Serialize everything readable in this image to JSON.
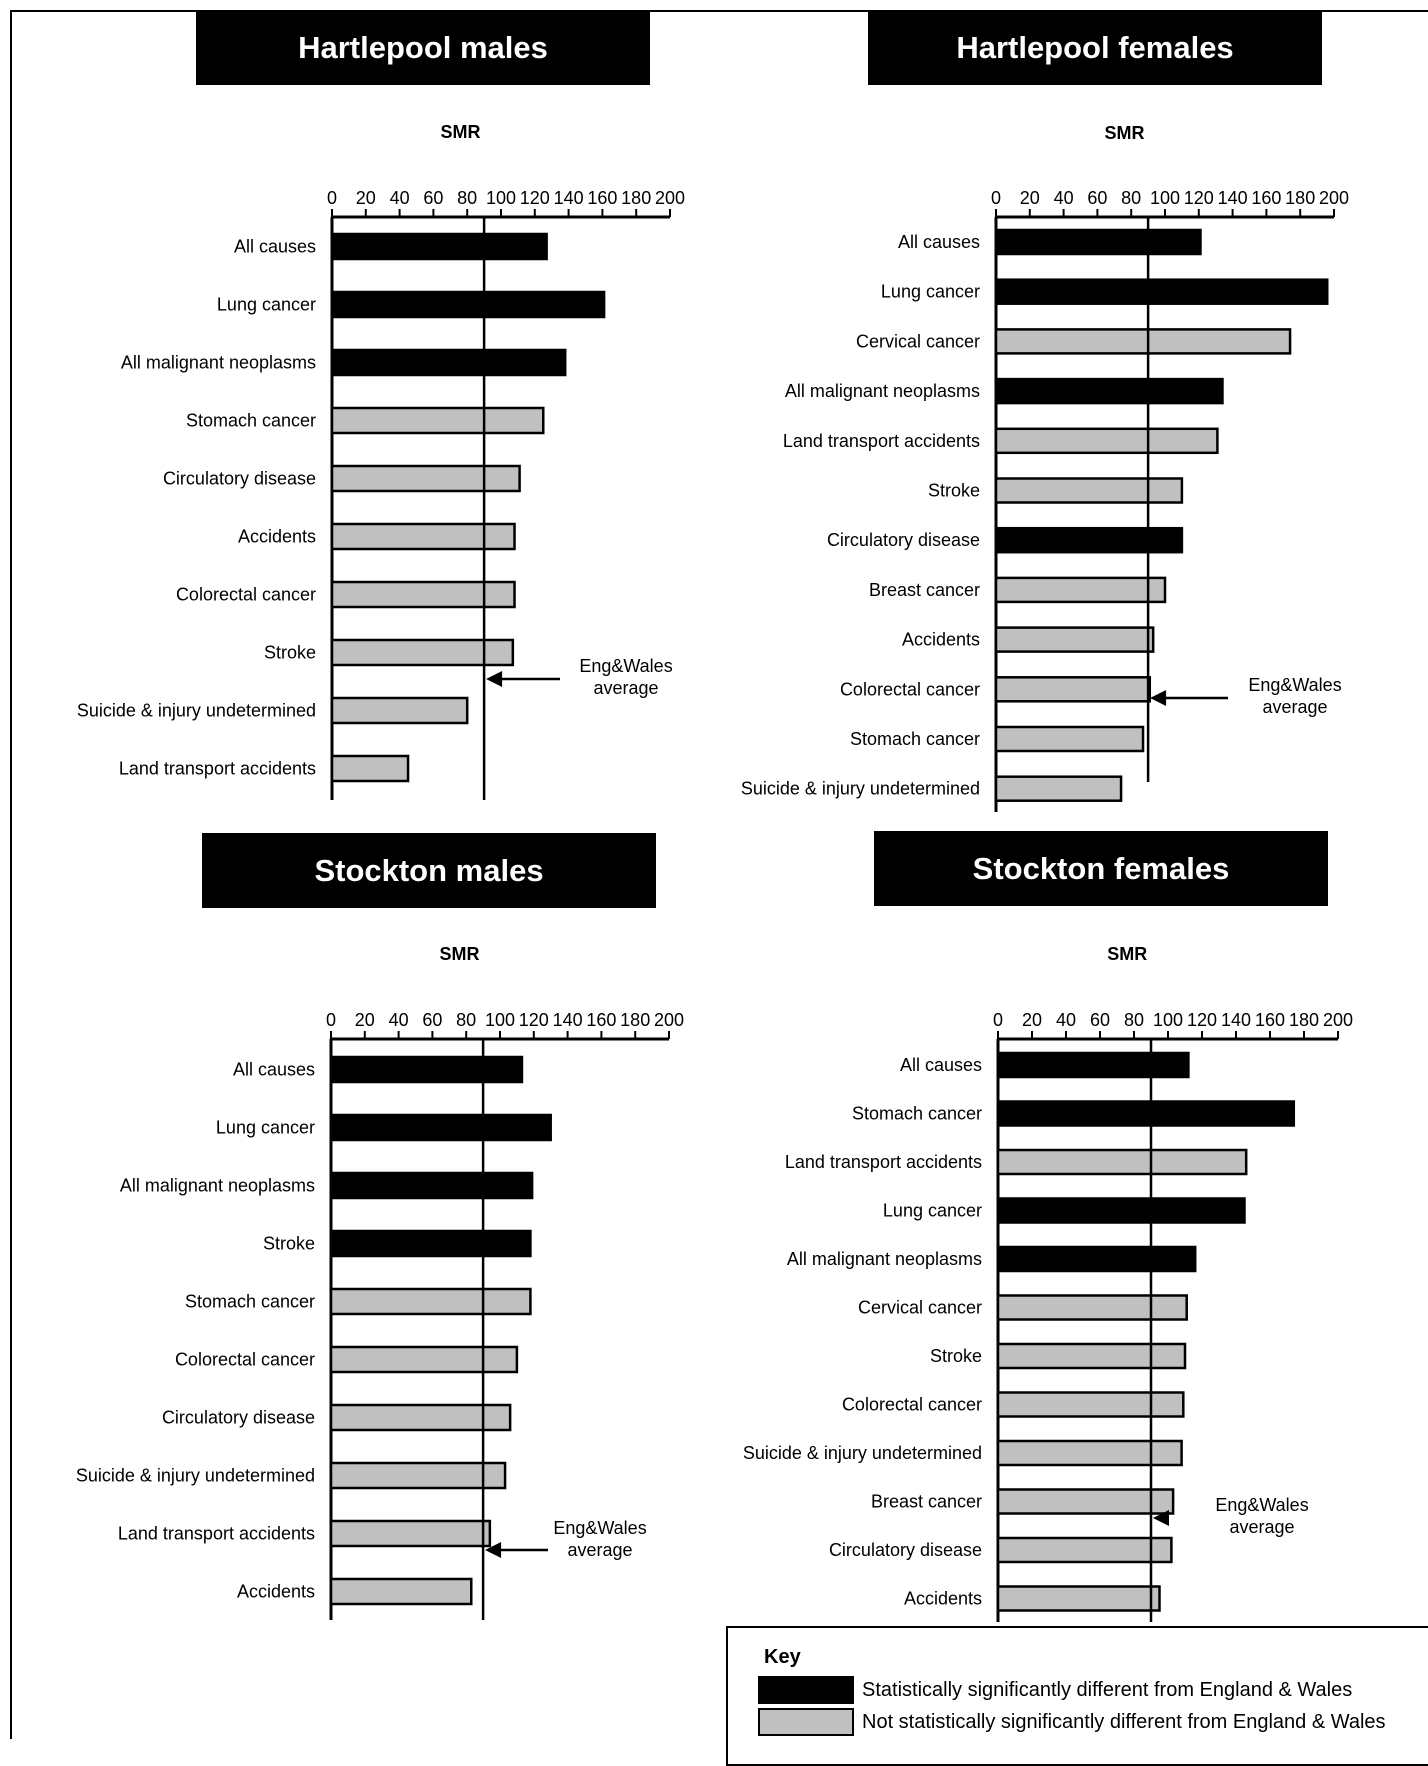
{
  "colors": {
    "significant": "#000000",
    "not_significant": "#c0c0c0"
  },
  "key": {
    "title": "Key",
    "significant_label": "Statistically significantly different from England & Wales",
    "not_significant_label": "Not statistically significantly different from England & Wales"
  },
  "chart_data": [
    {
      "type": "bar",
      "orientation": "horizontal",
      "title": "Hartlepool males",
      "xlabel": "SMR",
      "xlim": [
        0,
        200
      ],
      "xticks": [
        "0",
        "20",
        "40",
        "60",
        "80",
        "100",
        "120",
        "140",
        "160",
        "180",
        "200"
      ],
      "reference_value": 90,
      "reference_label": [
        "Eng&Wales",
        "average"
      ],
      "categories": [
        "All causes",
        "Lung cancer",
        "All malignant neoplasms",
        "Stomach cancer",
        "Circulatory disease",
        "Accidents",
        "Colorectal cancer",
        "Stroke",
        "Suicide & injury undetermined",
        "Land transport accidents"
      ],
      "values": [
        127,
        161,
        138,
        125,
        111,
        108,
        108,
        107,
        80,
        45
      ],
      "significant": [
        true,
        true,
        true,
        false,
        false,
        false,
        false,
        false,
        false,
        false
      ]
    },
    {
      "type": "bar",
      "orientation": "horizontal",
      "title": "Hartlepool females",
      "xlabel": "SMR",
      "xlim": [
        0,
        200
      ],
      "xticks": [
        "0",
        "20",
        "40",
        "60",
        "80",
        "100",
        "120",
        "140",
        "160",
        "180",
        "200"
      ],
      "reference_value": 90,
      "reference_label": [
        "Eng&Wales",
        "average"
      ],
      "categories": [
        "All causes",
        "Lung cancer",
        "Cervical cancer",
        "All malignant neoplasms",
        "Land transport accidents",
        "Stroke",
        "Circulatory disease",
        "Breast cancer",
        "Accidents",
        "Colorectal cancer",
        "Stomach cancer",
        "Suicide & injury undetermined"
      ],
      "values": [
        121,
        196,
        174,
        134,
        131,
        110,
        110,
        100,
        93,
        91,
        87,
        74
      ],
      "significant": [
        true,
        true,
        false,
        true,
        false,
        false,
        true,
        false,
        false,
        false,
        false,
        false
      ]
    },
    {
      "type": "bar",
      "orientation": "horizontal",
      "title": "Stockton males",
      "xlabel": "SMR",
      "xlim": [
        0,
        200
      ],
      "xticks": [
        "0",
        "20",
        "40",
        "60",
        "80",
        "100",
        "120",
        "140",
        "160",
        "180",
        "200"
      ],
      "reference_value": 90,
      "reference_label": [
        "Eng&Wales",
        "average"
      ],
      "categories": [
        "All causes",
        "Lung cancer",
        "All malignant neoplasms",
        "Stroke",
        "Stomach cancer",
        "Colorectal cancer",
        "Circulatory disease",
        "Suicide & injury undetermined",
        "Land transport accidents",
        "Accidents"
      ],
      "values": [
        113,
        130,
        119,
        118,
        118,
        110,
        106,
        103,
        94,
        83
      ],
      "significant": [
        true,
        true,
        true,
        true,
        false,
        false,
        false,
        false,
        false,
        false
      ]
    },
    {
      "type": "bar",
      "orientation": "horizontal",
      "title": "Stockton females",
      "xlabel": "SMR",
      "xlim": [
        0,
        200
      ],
      "xticks": [
        "0",
        "20",
        "40",
        "60",
        "80",
        "100",
        "120",
        "140",
        "160",
        "180",
        "200"
      ],
      "reference_value": 90,
      "reference_label": [
        "Eng&Wales",
        "average"
      ],
      "categories": [
        "All causes",
        "Stomach cancer",
        "Land transport accidents",
        "Lung cancer",
        "All malignant neoplasms",
        "Cervical cancer",
        "Stroke",
        "Colorectal cancer",
        "Suicide & injury undetermined",
        "Breast cancer",
        "Circulatory disease",
        "Accidents"
      ],
      "values": [
        112,
        174,
        146,
        145,
        116,
        111,
        110,
        109,
        108,
        103,
        102,
        95
      ],
      "significant": [
        true,
        true,
        false,
        true,
        true,
        false,
        false,
        false,
        false,
        false,
        false,
        false
      ]
    }
  ]
}
